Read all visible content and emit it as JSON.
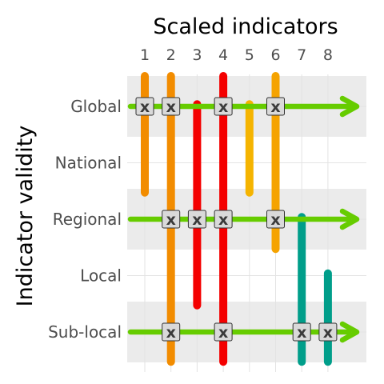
{
  "chart_data": {
    "type": "segment",
    "title": "Scaled indicators",
    "ylabel": "Indicator validity",
    "x_ticks": [
      "1",
      "2",
      "3",
      "4",
      "5",
      "6",
      "7",
      "8"
    ],
    "levels": [
      "Global",
      "National",
      "Regional",
      "Local",
      "Sub-local"
    ],
    "shaded_levels": [
      "Global",
      "Regional",
      "Sub-local"
    ],
    "grid": true,
    "indicators": [
      {
        "x": 1,
        "from": 1.0,
        "to": 2.5,
        "color": "#F28C00"
      },
      {
        "x": 2,
        "from": 1.0,
        "to": 5.5,
        "color": "#F28C00"
      },
      {
        "x": 3,
        "from": 1.5,
        "to": 4.5,
        "color": "#F40000"
      },
      {
        "x": 4,
        "from": 1.0,
        "to": 5.5,
        "color": "#F40000"
      },
      {
        "x": 5,
        "from": 1.5,
        "to": 2.5,
        "color": "#F5B400"
      },
      {
        "x": 6,
        "from": 1.0,
        "to": 3.5,
        "color": "#F5A300"
      },
      {
        "x": 7,
        "from": 3.5,
        "to": 5.5,
        "color": "#009E8A"
      },
      {
        "x": 8,
        "from": 4.5,
        "to": 5.5,
        "color": "#009E8A"
      }
    ],
    "arrows": [
      {
        "level": "Global",
        "color": "#66CC00"
      },
      {
        "level": "Regional",
        "color": "#66CC00"
      },
      {
        "level": "Sub-local",
        "color": "#66CC00"
      }
    ],
    "crossings": [
      {
        "level": "Global",
        "x": [
          1,
          2,
          4,
          6
        ]
      },
      {
        "level": "Regional",
        "x": [
          2,
          3,
          4,
          6
        ]
      },
      {
        "level": "Sub-local",
        "x": [
          2,
          4,
          7,
          8
        ]
      }
    ],
    "crossing_symbol": "x"
  }
}
